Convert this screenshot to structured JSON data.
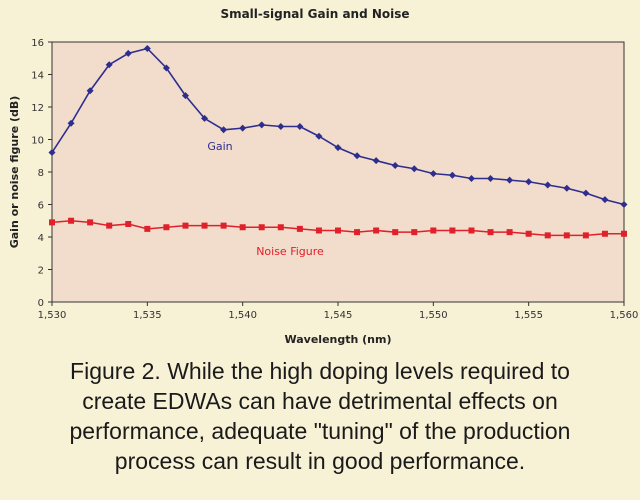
{
  "chart_data": {
    "type": "line",
    "title": "Small-signal Gain and Noise",
    "xlabel": "Wavelength (nm)",
    "ylabel": "Gain or noise figure (dB)",
    "xlim": [
      1530,
      1560
    ],
    "ylim": [
      0,
      16
    ],
    "x_ticks": [
      1530,
      1535,
      1540,
      1545,
      1550,
      1555,
      1560
    ],
    "x_tick_labels": [
      "1,530",
      "1,535",
      "1,540",
      "1,545",
      "1,550",
      "1,555",
      "1,560"
    ],
    "y_ticks": [
      0,
      2,
      4,
      6,
      8,
      10,
      12,
      14,
      16
    ],
    "y_tick_labels": [
      "0",
      "2",
      "4",
      "6",
      "8",
      "10",
      "12",
      "14",
      "16"
    ],
    "grid": false,
    "series": [
      {
        "name": "Gain",
        "color": "#2e2e8f",
        "marker": "diamond",
        "x": [
          1530,
          1531,
          1532,
          1533,
          1534,
          1535,
          1536,
          1537,
          1538,
          1539,
          1540,
          1541,
          1542,
          1543,
          1544,
          1545,
          1546,
          1547,
          1548,
          1549,
          1550,
          1551,
          1552,
          1553,
          1554,
          1555,
          1556,
          1557,
          1558,
          1559,
          1560
        ],
        "y": [
          9.2,
          11.0,
          13.0,
          14.6,
          15.3,
          15.6,
          14.4,
          12.7,
          11.3,
          10.6,
          10.7,
          10.9,
          10.8,
          10.8,
          10.2,
          9.5,
          9.0,
          8.7,
          8.4,
          8.2,
          7.9,
          7.8,
          7.6,
          7.6,
          7.5,
          7.4,
          7.2,
          7.0,
          6.7,
          6.3,
          6.0
        ]
      },
      {
        "name": "Noise Figure",
        "color": "#e0202a",
        "marker": "square",
        "x": [
          1530,
          1531,
          1532,
          1533,
          1534,
          1535,
          1536,
          1537,
          1538,
          1539,
          1540,
          1541,
          1542,
          1543,
          1544,
          1545,
          1546,
          1547,
          1548,
          1549,
          1550,
          1551,
          1552,
          1553,
          1554,
          1555,
          1556,
          1557,
          1558,
          1559,
          1560
        ],
        "y": [
          4.9,
          5.0,
          4.9,
          4.7,
          4.8,
          4.5,
          4.6,
          4.7,
          4.7,
          4.7,
          4.6,
          4.6,
          4.6,
          4.5,
          4.4,
          4.4,
          4.3,
          4.4,
          4.3,
          4.3,
          4.4,
          4.4,
          4.4,
          4.3,
          4.3,
          4.2,
          4.1,
          4.1,
          4.1,
          4.2,
          4.2
        ]
      }
    ]
  },
  "caption": {
    "lines": [
      "Figure 2. While the high doping levels required to",
      "create EDWAs can have detrimental effects on",
      "performance, adequate \"tuning\" of the production",
      "process can result in good performance."
    ]
  },
  "colors": {
    "page_background": "#f7f1d6",
    "plot_background": "#f2dccb",
    "axis": "#333333"
  }
}
